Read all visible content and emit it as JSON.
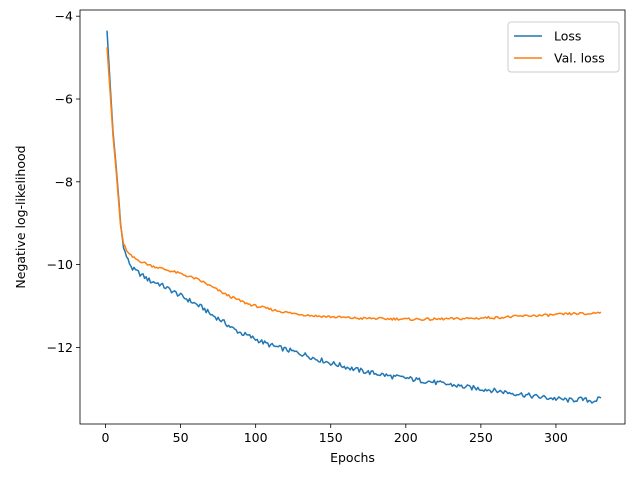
{
  "chart_data": {
    "type": "line",
    "title": "",
    "xlabel": "Epochs",
    "ylabel": "Negative log-likelihood",
    "xlim": [
      -17,
      346
    ],
    "ylim": [
      -13.85,
      -3.85
    ],
    "xticks": [
      0,
      50,
      100,
      150,
      200,
      250,
      300
    ],
    "yticks": [
      -4,
      -6,
      -8,
      -10,
      -12
    ],
    "ytick_labels": [
      "−4",
      "−6",
      "−8",
      "−10",
      "−12"
    ],
    "grid": false,
    "legend_position": "top-right",
    "series": [
      {
        "name": "Loss",
        "color": "#1f77b4",
        "points": [
          [
            1,
            -4.35
          ],
          [
            3,
            -5.6
          ],
          [
            5,
            -6.8
          ],
          [
            7,
            -7.6
          ],
          [
            9,
            -8.5
          ],
          [
            10,
            -9.0
          ],
          [
            12,
            -9.6
          ],
          [
            15,
            -9.9
          ],
          [
            18,
            -10.1
          ],
          [
            22,
            -10.2
          ],
          [
            26,
            -10.3
          ],
          [
            30,
            -10.4
          ],
          [
            35,
            -10.45
          ],
          [
            40,
            -10.55
          ],
          [
            45,
            -10.65
          ],
          [
            50,
            -10.75
          ],
          [
            55,
            -10.85
          ],
          [
            60,
            -10.95
          ],
          [
            65,
            -11.05
          ],
          [
            70,
            -11.2
          ],
          [
            75,
            -11.3
          ],
          [
            80,
            -11.42
          ],
          [
            85,
            -11.55
          ],
          [
            90,
            -11.65
          ],
          [
            95,
            -11.72
          ],
          [
            100,
            -11.8
          ],
          [
            105,
            -11.88
          ],
          [
            110,
            -11.95
          ],
          [
            115,
            -12.0
          ],
          [
            120,
            -12.05
          ],
          [
            125,
            -12.1
          ],
          [
            130,
            -12.15
          ],
          [
            135,
            -12.2
          ],
          [
            140,
            -12.28
          ],
          [
            145,
            -12.32
          ],
          [
            150,
            -12.38
          ],
          [
            155,
            -12.42
          ],
          [
            160,
            -12.47
          ],
          [
            165,
            -12.52
          ],
          [
            170,
            -12.56
          ],
          [
            175,
            -12.6
          ],
          [
            180,
            -12.63
          ],
          [
            185,
            -12.66
          ],
          [
            190,
            -12.7
          ],
          [
            195,
            -12.72
          ],
          [
            200,
            -12.74
          ],
          [
            205,
            -12.77
          ],
          [
            210,
            -12.8
          ],
          [
            215,
            -12.82
          ],
          [
            220,
            -12.85
          ],
          [
            225,
            -12.88
          ],
          [
            230,
            -12.9
          ],
          [
            235,
            -12.93
          ],
          [
            240,
            -12.96
          ],
          [
            245,
            -12.98
          ],
          [
            250,
            -13.0
          ],
          [
            255,
            -13.02
          ],
          [
            260,
            -13.05
          ],
          [
            265,
            -13.07
          ],
          [
            270,
            -13.1
          ],
          [
            275,
            -13.12
          ],
          [
            280,
            -13.15
          ],
          [
            285,
            -13.18
          ],
          [
            290,
            -13.2
          ],
          [
            295,
            -13.22
          ],
          [
            300,
            -13.24
          ],
          [
            305,
            -13.26
          ],
          [
            310,
            -13.28
          ],
          [
            315,
            -13.25
          ],
          [
            320,
            -13.27
          ],
          [
            325,
            -13.3
          ],
          [
            330,
            -13.22
          ]
        ]
      },
      {
        "name": "Val. loss",
        "color": "#ff7f0e",
        "points": [
          [
            1,
            -4.75
          ],
          [
            3,
            -5.8
          ],
          [
            5,
            -6.9
          ],
          [
            7,
            -7.7
          ],
          [
            9,
            -8.6
          ],
          [
            10,
            -9.05
          ],
          [
            12,
            -9.5
          ],
          [
            15,
            -9.72
          ],
          [
            18,
            -9.82
          ],
          [
            22,
            -9.9
          ],
          [
            26,
            -9.96
          ],
          [
            30,
            -10.02
          ],
          [
            35,
            -10.07
          ],
          [
            40,
            -10.12
          ],
          [
            45,
            -10.17
          ],
          [
            50,
            -10.22
          ],
          [
            55,
            -10.28
          ],
          [
            60,
            -10.34
          ],
          [
            65,
            -10.42
          ],
          [
            70,
            -10.52
          ],
          [
            75,
            -10.62
          ],
          [
            80,
            -10.72
          ],
          [
            85,
            -10.8
          ],
          [
            90,
            -10.88
          ],
          [
            95,
            -10.95
          ],
          [
            100,
            -11.0
          ],
          [
            105,
            -11.04
          ],
          [
            110,
            -11.08
          ],
          [
            115,
            -11.12
          ],
          [
            120,
            -11.15
          ],
          [
            125,
            -11.18
          ],
          [
            130,
            -11.2
          ],
          [
            135,
            -11.22
          ],
          [
            140,
            -11.24
          ],
          [
            145,
            -11.25
          ],
          [
            150,
            -11.26
          ],
          [
            155,
            -11.27
          ],
          [
            160,
            -11.28
          ],
          [
            165,
            -11.29
          ],
          [
            170,
            -11.3
          ],
          [
            175,
            -11.3
          ],
          [
            180,
            -11.3
          ],
          [
            185,
            -11.31
          ],
          [
            190,
            -11.31
          ],
          [
            195,
            -11.31
          ],
          [
            200,
            -11.32
          ],
          [
            205,
            -11.32
          ],
          [
            210,
            -11.32
          ],
          [
            215,
            -11.32
          ],
          [
            220,
            -11.32
          ],
          [
            225,
            -11.31
          ],
          [
            230,
            -11.31
          ],
          [
            235,
            -11.31
          ],
          [
            240,
            -11.3
          ],
          [
            245,
            -11.3
          ],
          [
            250,
            -11.29
          ],
          [
            255,
            -11.28
          ],
          [
            260,
            -11.28
          ],
          [
            265,
            -11.27
          ],
          [
            270,
            -11.26
          ],
          [
            275,
            -11.25
          ],
          [
            280,
            -11.24
          ],
          [
            285,
            -11.23
          ],
          [
            290,
            -11.23
          ],
          [
            295,
            -11.22
          ],
          [
            300,
            -11.21
          ],
          [
            305,
            -11.2
          ],
          [
            310,
            -11.19
          ],
          [
            315,
            -11.18
          ],
          [
            320,
            -11.2
          ],
          [
            325,
            -11.17
          ],
          [
            330,
            -11.15
          ]
        ]
      }
    ]
  }
}
